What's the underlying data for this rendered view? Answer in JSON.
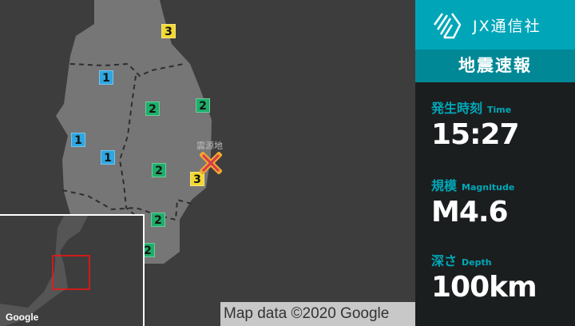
{
  "map": {
    "epicenter_label": "震源地",
    "intensity_colors": {
      "1": "#2ea6e0",
      "2": "#1fae6a",
      "3": "#f2d833"
    },
    "markers": [
      {
        "value": "3"
      },
      {
        "value": "1"
      },
      {
        "value": "2"
      },
      {
        "value": "2"
      },
      {
        "value": "1"
      },
      {
        "value": "1"
      },
      {
        "value": "2"
      },
      {
        "value": "3"
      },
      {
        "value": "2"
      },
      {
        "value": "2"
      }
    ],
    "google_logo": "Google",
    "attribution": "Map data ©2020 Google"
  },
  "panel": {
    "brand": "JX通信社",
    "title": "地震速報",
    "time": {
      "label": "発生時刻",
      "sub": "Time",
      "value": "15:27"
    },
    "magnitude": {
      "label": "規模",
      "sub": "Magnitude",
      "value": "M4.6"
    },
    "depth": {
      "label": "深さ",
      "sub": "Depth",
      "value": "100km"
    }
  }
}
